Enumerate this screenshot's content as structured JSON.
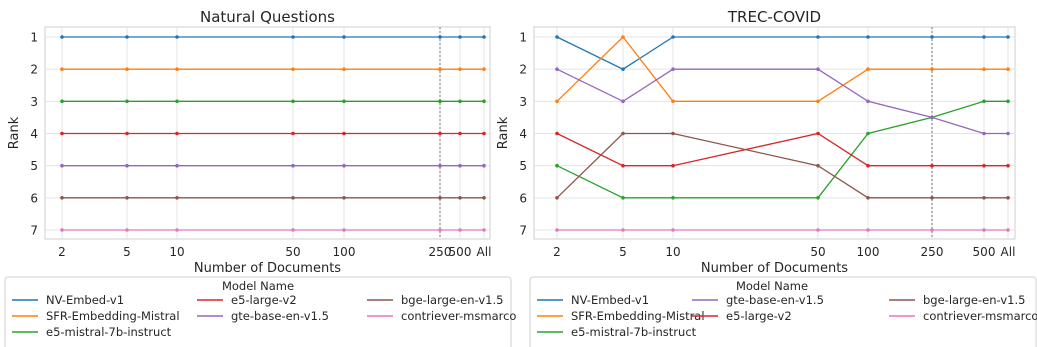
{
  "chart_data": [
    {
      "type": "line",
      "title": "Natural Questions",
      "xlabel": "Number of Documents",
      "ylabel": "Rank",
      "x_scale": "log",
      "x": [
        "2",
        "5",
        "10",
        "50",
        "100",
        "250",
        "500",
        "All"
      ],
      "ylim": [
        7,
        1
      ],
      "yticks": [
        1,
        2,
        3,
        4,
        5,
        6,
        7
      ],
      "grid": true,
      "vline_at": "250",
      "series": [
        {
          "name": "NV-Embed-v1",
          "color": "#1f77b4",
          "values": [
            1,
            1,
            1,
            1,
            1,
            1,
            1,
            1
          ]
        },
        {
          "name": "SFR-Embedding-Mistral",
          "color": "#ff7f0e",
          "values": [
            2,
            2,
            2,
            2,
            2,
            2,
            2,
            2
          ]
        },
        {
          "name": "e5-mistral-7b-instruct",
          "color": "#2ca02c",
          "values": [
            3,
            3,
            3,
            3,
            3,
            3,
            3,
            3
          ]
        },
        {
          "name": "e5-large-v2",
          "color": "#d62728",
          "values": [
            4,
            4,
            4,
            4,
            4,
            4,
            4,
            4
          ]
        },
        {
          "name": "gte-base-en-v1.5",
          "color": "#9467bd",
          "values": [
            5,
            5,
            5,
            5,
            5,
            5,
            5,
            5
          ]
        },
        {
          "name": "bge-large-en-v1.5",
          "color": "#8c564b",
          "values": [
            6,
            6,
            6,
            6,
            6,
            6,
            6,
            6
          ]
        },
        {
          "name": "contriever-msmarco",
          "color": "#e377c2",
          "values": [
            7,
            7,
            7,
            7,
            7,
            7,
            7,
            7
          ]
        }
      ],
      "legend": {
        "title": "Model Name",
        "placement": "below",
        "columns": [
          [
            "NV-Embed-v1",
            "SFR-Embedding-Mistral",
            "e5-mistral-7b-instruct"
          ],
          [
            "e5-large-v2",
            "gte-base-en-v1.5"
          ],
          [
            "bge-large-en-v1.5",
            "contriever-msmarco"
          ]
        ]
      }
    },
    {
      "type": "line",
      "title": "TREC-COVID",
      "xlabel": "Number of Documents",
      "ylabel": "Rank",
      "x_scale": "log",
      "x": [
        "2",
        "5",
        "10",
        "50",
        "100",
        "250",
        "500",
        "All"
      ],
      "ylim": [
        7,
        1
      ],
      "yticks": [
        1,
        2,
        3,
        4,
        5,
        6,
        7
      ],
      "grid": true,
      "vline_at": "250",
      "series": [
        {
          "name": "NV-Embed-v1",
          "color": "#1f77b4",
          "values": [
            1,
            2,
            1,
            1,
            1,
            1,
            1,
            1
          ]
        },
        {
          "name": "SFR-Embedding-Mistral",
          "color": "#ff7f0e",
          "values": [
            3,
            1,
            3,
            3,
            2,
            2,
            2,
            2
          ]
        },
        {
          "name": "e5-mistral-7b-instruct",
          "color": "#2ca02c",
          "values": [
            5,
            6,
            6,
            6,
            4,
            3.5,
            3,
            3
          ]
        },
        {
          "name": "gte-base-en-v1.5",
          "color": "#9467bd",
          "values": [
            2,
            3,
            2,
            2,
            3,
            3.5,
            4,
            4
          ]
        },
        {
          "name": "e5-large-v2",
          "color": "#d62728",
          "values": [
            4,
            5,
            5,
            4,
            5,
            5,
            5,
            5
          ]
        },
        {
          "name": "bge-large-en-v1.5",
          "color": "#8c564b",
          "values": [
            6,
            4,
            4,
            5,
            6,
            6,
            6,
            6
          ]
        },
        {
          "name": "contriever-msmarco",
          "color": "#e377c2",
          "values": [
            7,
            7,
            7,
            7,
            7,
            7,
            7,
            7
          ]
        }
      ],
      "legend": {
        "title": "Model Name",
        "placement": "below",
        "columns": [
          [
            "NV-Embed-v1",
            "SFR-Embedding-Mistral",
            "e5-mistral-7b-instruct"
          ],
          [
            "gte-base-en-v1.5",
            "e5-large-v2"
          ],
          [
            "bge-large-en-v1.5",
            "contriever-msmarco"
          ]
        ]
      }
    }
  ]
}
